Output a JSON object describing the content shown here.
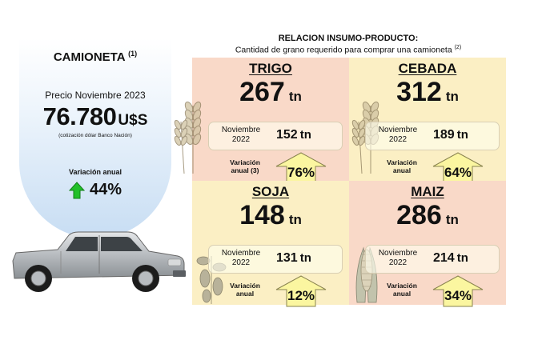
{
  "header": {
    "title": "RELACION INSUMO-PRODUCTO:",
    "subtitle": "Cantidad de grano requerido para comprar una camioneta",
    "subtitle_note": "(2)"
  },
  "vehicle": {
    "title": "CAMIONETA",
    "title_note": "(1)",
    "price_label": "Precio Noviembre 2023",
    "price_value": "76.780",
    "price_currency": "U$S",
    "price_note": "(cotización dólar Banco Nación)",
    "variation_label": "Variación anual",
    "variation_value": "44%",
    "arrow_color": "#22c02a",
    "icon": "pickup-truck-icon"
  },
  "grains": [
    {
      "name": "TRIGO",
      "current_value": "267",
      "unit": "tn",
      "prev_label_1": "Noviembre",
      "prev_label_2": "2022",
      "prev_value": "152",
      "variation_label_1": "Variación",
      "variation_label_2": "anual (3)",
      "variation_value": "76%",
      "bg_color": "#f9d9c8",
      "icon": "wheat-icon"
    },
    {
      "name": "CEBADA",
      "current_value": "312",
      "unit": "tn",
      "prev_label_1": "Noviembre",
      "prev_label_2": "2022",
      "prev_value": "189",
      "variation_label_1": "Variación",
      "variation_label_2": "anual",
      "variation_value": "64%",
      "bg_color": "#fbefc4",
      "icon": "barley-icon"
    },
    {
      "name": "SOJA",
      "current_value": "148",
      "unit": "tn",
      "prev_label_1": "Noviembre",
      "prev_label_2": "2022",
      "prev_value": "131",
      "variation_label_1": "Variación",
      "variation_label_2": "anual",
      "variation_value": "12%",
      "bg_color": "#fbefc4",
      "icon": "soybean-icon"
    },
    {
      "name": "MAIZ",
      "current_value": "286",
      "unit": "tn",
      "prev_label_1": "Noviembre",
      "prev_label_2": "2022",
      "prev_value": "214",
      "variation_label_1": "Variación",
      "variation_label_2": "anual",
      "variation_value": "34%",
      "bg_color": "#f9d9c8",
      "icon": "corn-icon"
    }
  ],
  "variation_arrow_color": "#fbf6a0"
}
